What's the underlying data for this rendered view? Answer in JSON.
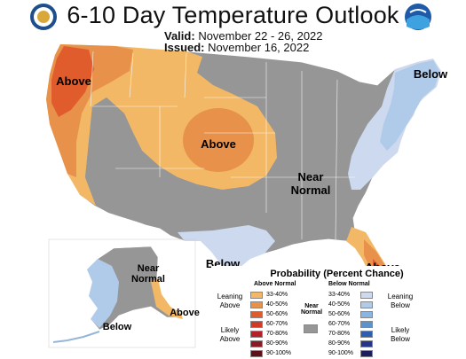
{
  "title": "6-10 Day Temperature Outlook",
  "valid": {
    "label": "Valid:",
    "value": "November 22 - 26, 2022"
  },
  "issued": {
    "label": "Issued:",
    "value": "November 16, 2022"
  },
  "map_labels": {
    "above_nw": "Above",
    "above_central": "Above",
    "near_normal": "Near\nNormal",
    "below_ne": "Below",
    "below_tx": "Below",
    "above_fl": "Above",
    "ak_near_normal": "Near\nNormal",
    "ak_below": "Below",
    "ak_above": "Above"
  },
  "legend": {
    "title": "Probability (Percent Chance)",
    "above_header": "Above Normal",
    "below_header": "Below Normal",
    "near_header": "Near\nNormal",
    "leaning_above": "Leaning\nAbove",
    "likely_above": "Likely\nAbove",
    "leaning_below": "Leaning\nBelow",
    "likely_below": "Likely\nBelow",
    "above_bins": [
      {
        "label": "33-40%",
        "color": "#f2b865"
      },
      {
        "label": "40-50%",
        "color": "#e8914a"
      },
      {
        "label": "50-60%",
        "color": "#e05c2c"
      },
      {
        "label": "60-70%",
        "color": "#d13a25"
      },
      {
        "label": "70-80%",
        "color": "#b3202a"
      },
      {
        "label": "80-90%",
        "color": "#8a1a24"
      },
      {
        "label": "90-100%",
        "color": "#5e1019"
      }
    ],
    "below_bins": [
      {
        "label": "33-40%",
        "color": "#cdd9ee"
      },
      {
        "label": "40-50%",
        "color": "#b0cbe9"
      },
      {
        "label": "50-60%",
        "color": "#88b6e0"
      },
      {
        "label": "60-70%",
        "color": "#5b93cf"
      },
      {
        "label": "70-80%",
        "color": "#2e5fae"
      },
      {
        "label": "80-90%",
        "color": "#24368a"
      },
      {
        "label": "90-100%",
        "color": "#1c1f5e"
      }
    ],
    "near_color": "#969696"
  },
  "logos": {
    "left": "Department of Commerce seal",
    "right": "NOAA"
  }
}
